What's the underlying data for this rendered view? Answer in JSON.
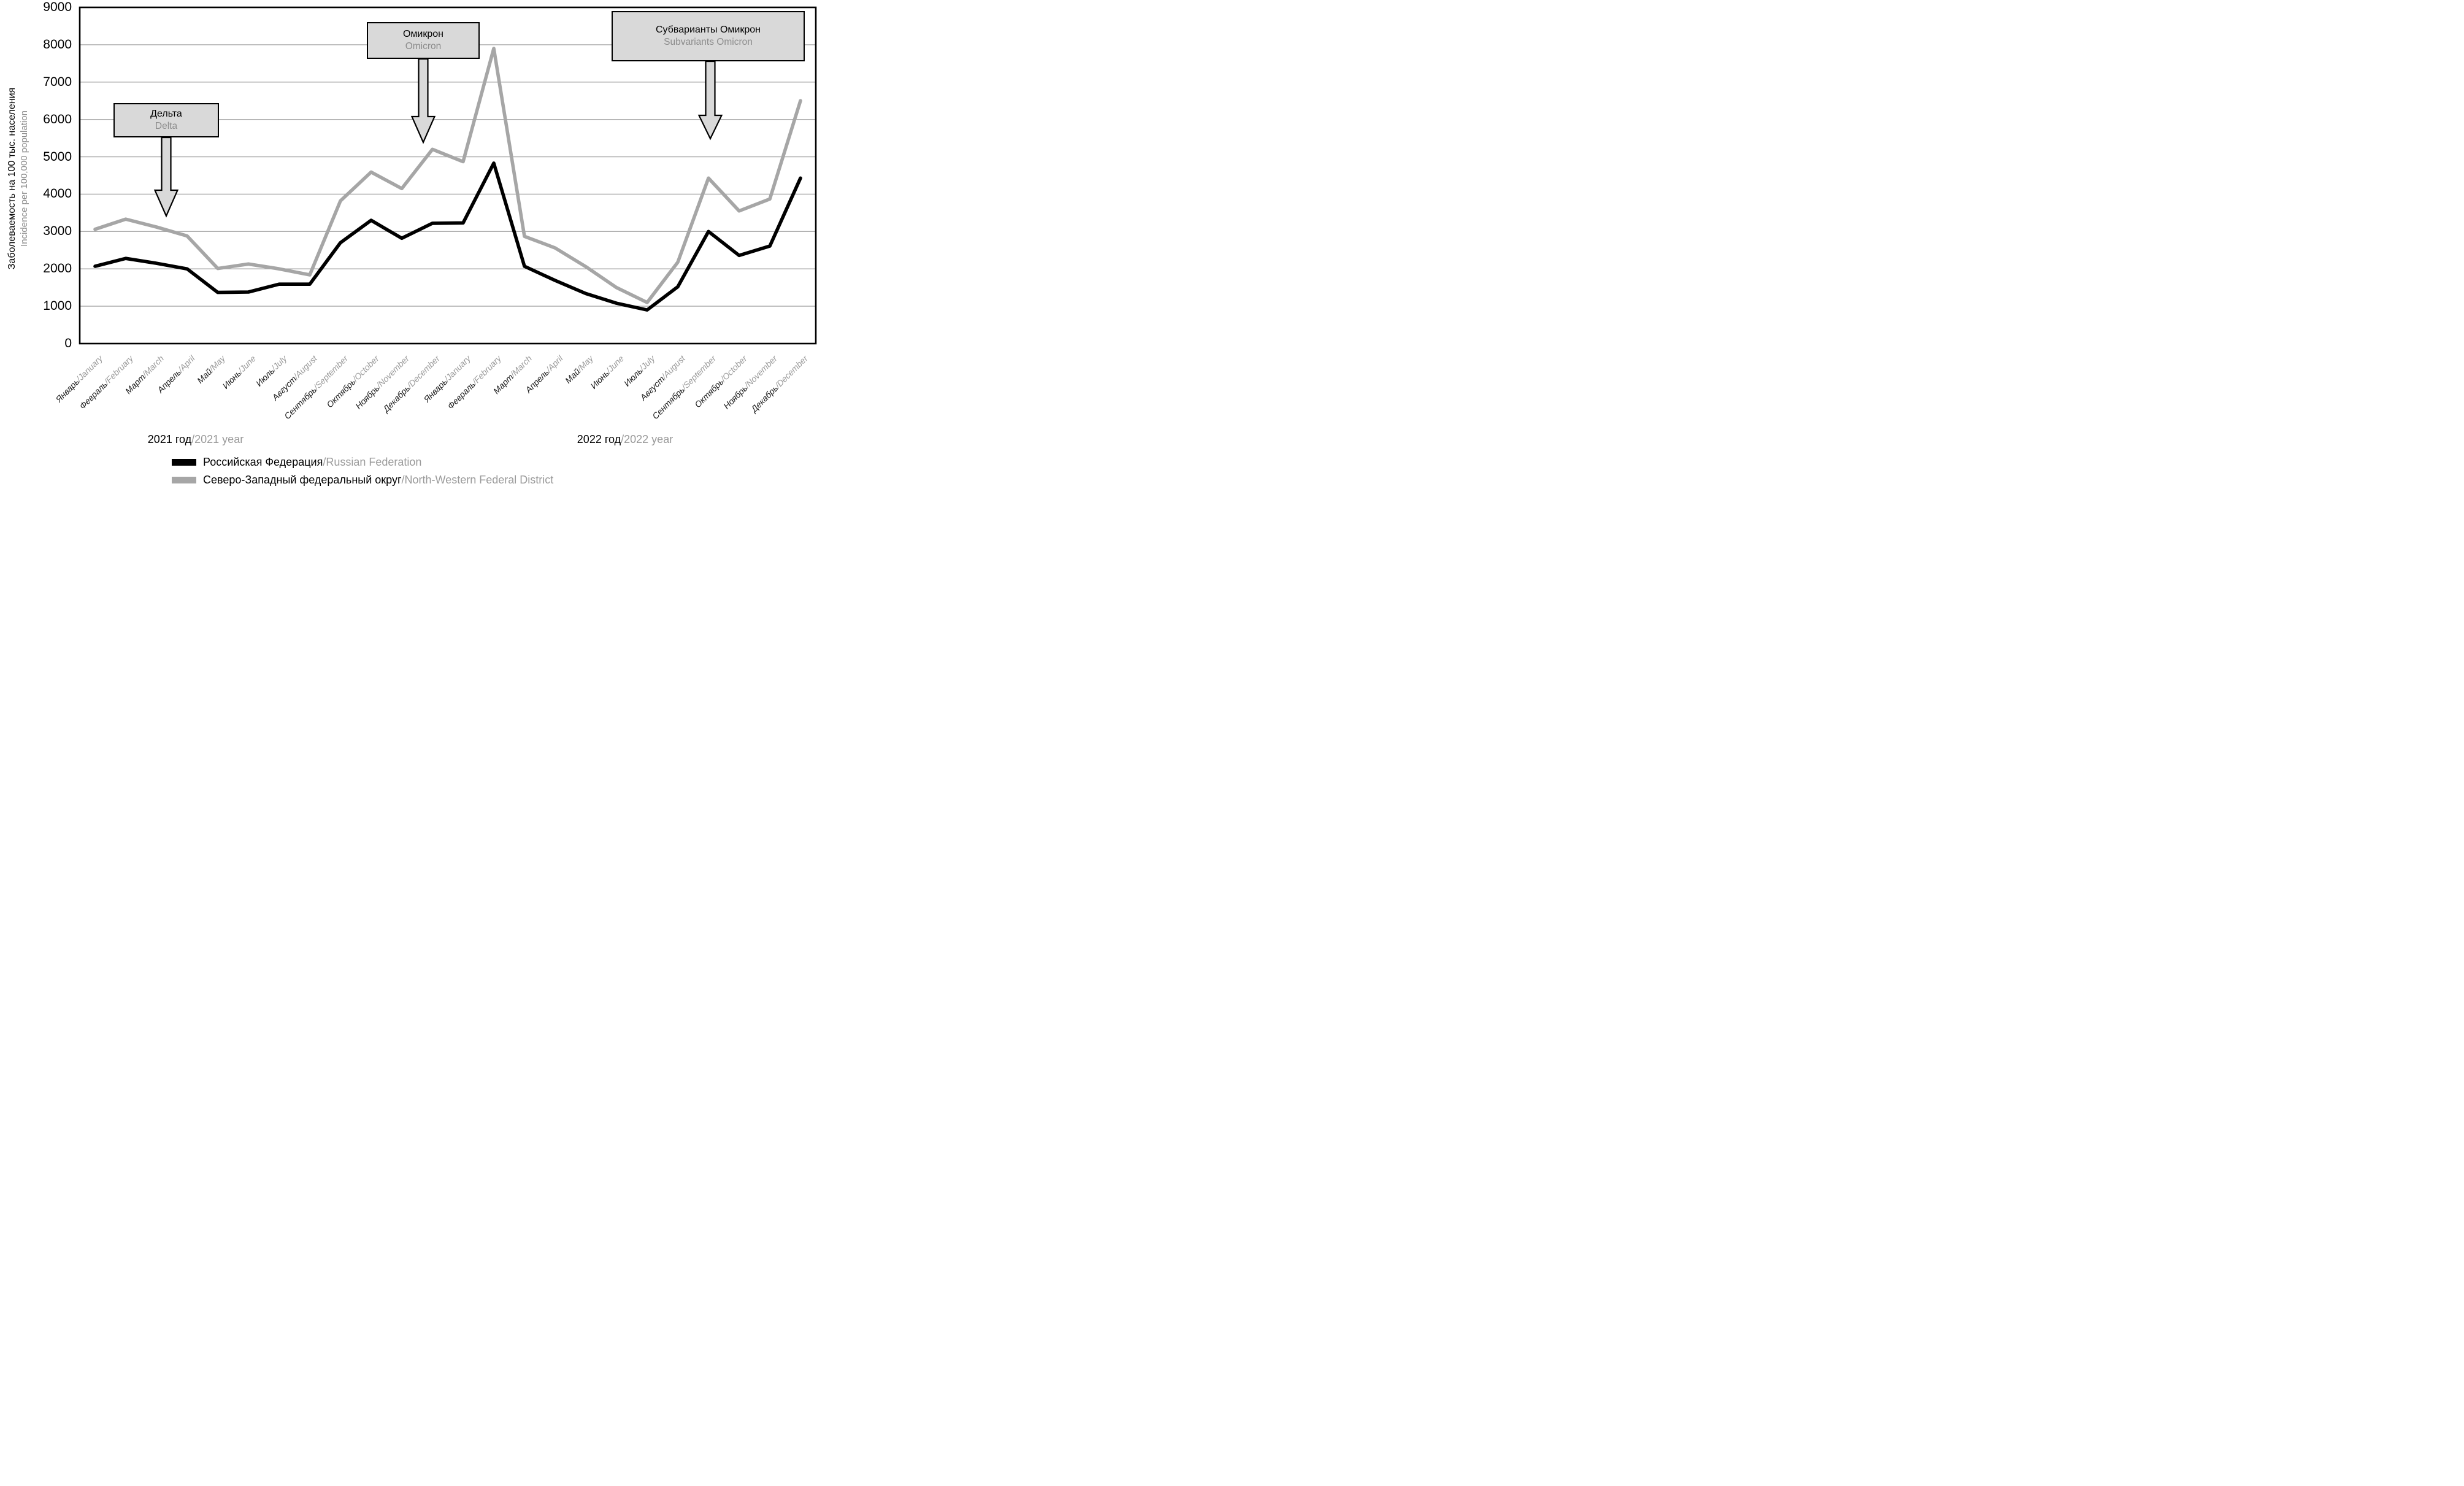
{
  "colors": {
    "rf_line": "#000000",
    "nwfd_line": "#a6a6a6",
    "grid": "#a9a9a9",
    "plot_border": "#000000",
    "annotation_fill": "#d9d9d9",
    "secondary_text": "#8c8c8c"
  },
  "chart_data": {
    "type": "line",
    "title": "",
    "ylabel_ru": "Заболеваемость на 100 тыс. населения",
    "ylabel_en": "Incidence per 100,000 population",
    "ylim": [
      0,
      9000
    ],
    "y_ticks": [
      0,
      1000,
      2000,
      3000,
      4000,
      5000,
      6000,
      7000,
      8000,
      9000
    ],
    "grid": "horizontal",
    "legend_position": "bottom",
    "categories": [
      {
        "ru": "Январь",
        "en": "/January"
      },
      {
        "ru": "Февраль",
        "en": "/February"
      },
      {
        "ru": "Март",
        "en": "/March"
      },
      {
        "ru": "Апрель",
        "en": "/April"
      },
      {
        "ru": "Май",
        "en": "/May"
      },
      {
        "ru": "Июнь",
        "en": "/June"
      },
      {
        "ru": "Июль",
        "en": "/July"
      },
      {
        "ru": "Август",
        "en": "/August"
      },
      {
        "ru": "Сентябрь",
        "en": "/September"
      },
      {
        "ru": "Октябрь",
        "en": "/October"
      },
      {
        "ru": "Ноябрь",
        "en": "/November"
      },
      {
        "ru": "Декабрь",
        "en": "/December"
      },
      {
        "ru": "Январь",
        "en": "/January"
      },
      {
        "ru": "Февраль",
        "en": "/February"
      },
      {
        "ru": "Март",
        "en": "/March"
      },
      {
        "ru": "Апрель",
        "en": "/April"
      },
      {
        "ru": "Май",
        "en": "/May"
      },
      {
        "ru": "Июнь",
        "en": "/June"
      },
      {
        "ru": "Июль",
        "en": "/July"
      },
      {
        "ru": "Август",
        "en": "/August"
      },
      {
        "ru": "Сентябрь",
        "en": "/September"
      },
      {
        "ru": "Октябрь",
        "en": "/October"
      },
      {
        "ru": "Ноябрь",
        "en": "/November"
      },
      {
        "ru": "Декабрь",
        "en": "/December"
      }
    ],
    "year_groups": [
      {
        "ru": "2021 год",
        "en": "/2021 year"
      },
      {
        "ru": "2022 год",
        "en": "/2022 year"
      }
    ],
    "series": [
      {
        "name_ru": "Российская Федерация",
        "name_en": "/Russian Federation",
        "color": "#000000",
        "values": [
          2070,
          2280,
          2150,
          2000,
          1370,
          1380,
          1590,
          1590,
          2700,
          3300,
          2820,
          3220,
          3230,
          4830,
          2070,
          1690,
          1340,
          1080,
          900,
          1520,
          3000,
          2360,
          2610,
          4430
        ]
      },
      {
        "name_ru": "Северо-Западный федеральный округ",
        "name_en": "/North-Western Federal District",
        "color": "#a6a6a6",
        "values": [
          3060,
          3330,
          3120,
          2880,
          2010,
          2130,
          2000,
          1840,
          3820,
          4590,
          4150,
          5200,
          4870,
          7900,
          2870,
          2560,
          2060,
          1500,
          1100,
          2180,
          4430,
          3550,
          3870,
          6500
        ]
      }
    ],
    "annotations": [
      {
        "ru": "Дельта",
        "en": "Delta"
      },
      {
        "ru": "Омикрон",
        "en": "Omicron"
      },
      {
        "ru": "Субварианты Омикрон",
        "en": "Subvariants Omicron"
      }
    ]
  }
}
